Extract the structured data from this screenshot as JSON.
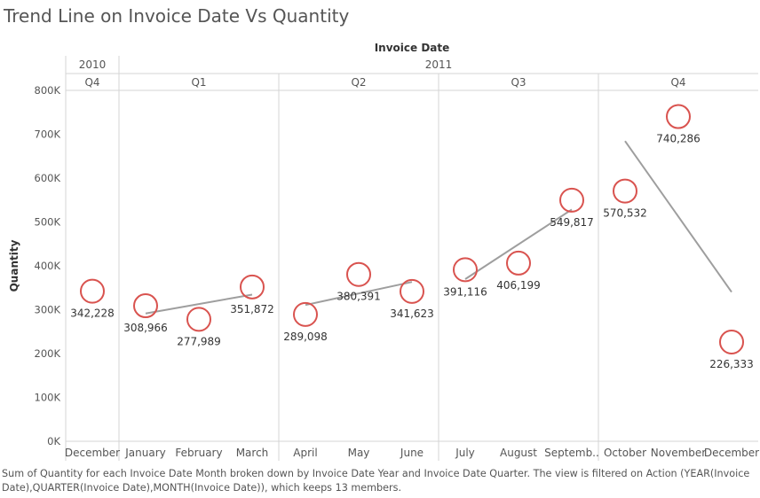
{
  "title": "Trend Line on Invoice Date Vs Quantity",
  "caption": "Sum of Quantity for each Invoice Date Month broken down by Invoice Date Year and Invoice Date Quarter. The view is filtered on Action (YEAR(Invoice Date),QUARTER(Invoice Date),MONTH(Invoice Date)), which keeps 13 members.",
  "colors": {
    "marker": "#d9534f",
    "trend": "#9e9e9e",
    "divider": "#d4d4d4",
    "text": "#555555"
  },
  "chart_data": {
    "type": "scatter",
    "title": "Trend Line on Invoice Date Vs Quantity",
    "xlabel": "Invoice Date",
    "ylabel": "Quantity",
    "ylim": [
      0,
      800000
    ],
    "yticks": [
      0,
      100000,
      200000,
      300000,
      400000,
      500000,
      600000,
      700000,
      800000
    ],
    "ytick_labels": [
      "0K",
      "100K",
      "200K",
      "300K",
      "400K",
      "500K",
      "600K",
      "700K",
      "800K"
    ],
    "marker": "open-circle",
    "years": [
      {
        "label": "2010",
        "start": 0,
        "count": 1
      },
      {
        "label": "2011",
        "start": 1,
        "count": 12
      }
    ],
    "quarters": [
      {
        "label": "Q4",
        "start": 0,
        "count": 1
      },
      {
        "label": "Q1",
        "start": 1,
        "count": 3
      },
      {
        "label": "Q2",
        "start": 4,
        "count": 3
      },
      {
        "label": "Q3",
        "start": 7,
        "count": 3
      },
      {
        "label": "Q4",
        "start": 10,
        "count": 3
      }
    ],
    "categories": [
      "December",
      "January",
      "February",
      "March",
      "April",
      "May",
      "June",
      "July",
      "August",
      "Septemb..",
      "October",
      "November",
      "December"
    ],
    "values": [
      342228,
      308966,
      277989,
      351872,
      289098,
      380391,
      341623,
      391116,
      406199,
      549817,
      570532,
      740286,
      226333
    ],
    "value_labels": [
      "342,228",
      "308,966",
      "277,989",
      "351,872",
      "289,098",
      "380,391",
      "341,623",
      "391,116",
      "406,199",
      "549,817",
      "570,532",
      "740,286",
      "226,333"
    ],
    "trend_lines": [
      {
        "pane": "2011 Q1",
        "from": 1,
        "to": 3
      },
      {
        "pane": "2011 Q2",
        "from": 4,
        "to": 6
      },
      {
        "pane": "2011 Q3",
        "from": 7,
        "to": 9
      },
      {
        "pane": "2011 Q4",
        "from": 10,
        "to": 12
      }
    ]
  }
}
